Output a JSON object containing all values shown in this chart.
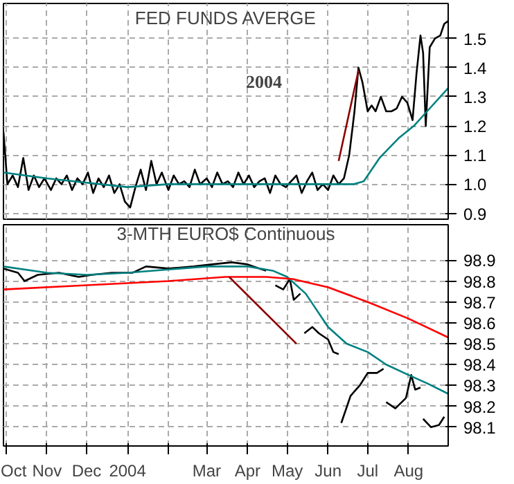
{
  "chart_data": [
    {
      "type": "line",
      "title": "FED FUNDS AVERGE",
      "annotations": [
        "2004"
      ],
      "xlim": [
        "2003-09-29",
        "2004-08-31"
      ],
      "ylim": [
        0.88,
        1.62
      ],
      "yticks": [
        0.9,
        {
          "value": 1,
          "label": "1.0"
        },
        1.1,
        1.2,
        1.3,
        1.4,
        1.5
      ],
      "xticks": [
        {
          "value": "2003-10-01",
          "label": null
        },
        {
          "value": "2003-11-01",
          "label": null
        },
        {
          "value": "2003-12-01",
          "label": null
        },
        {
          "value": "2004-01-01",
          "label": null
        },
        {
          "value": "2004-02-01",
          "label": null
        },
        {
          "value": "2004-03-01",
          "label": null
        },
        {
          "value": "2004-04-01",
          "label": null
        },
        {
          "value": "2004-05-01",
          "label": null
        },
        {
          "value": "2004-06-01",
          "label": null
        },
        {
          "value": "2004-07-01",
          "label": null
        },
        {
          "value": "2004-08-01",
          "label": null
        }
      ],
      "tick_labels": "y",
      "grid": true,
      "series": [
        {
          "color": "#000000",
          "x": [
            "2003-09-29",
            "2003-10-02",
            "2003-10-06",
            "2003-10-10",
            "2003-10-14",
            "2003-10-18",
            "2003-10-22",
            "2003-10-26",
            "2003-10-30",
            "2003-11-04",
            "2003-11-08",
            "2003-11-12",
            "2003-11-16",
            "2003-11-20",
            "2003-11-24",
            "2003-11-28",
            "2003-12-02",
            "2003-12-06",
            "2003-12-10",
            "2003-12-14",
            "2003-12-18",
            "2003-12-22",
            "2003-12-26",
            "2003-12-30",
            "2004-01-03",
            "2004-01-07",
            "2004-01-11",
            "2004-01-15",
            "2004-01-19",
            "2004-01-23",
            "2004-01-27",
            "2004-02-01",
            "2004-02-05",
            "2004-02-09",
            "2004-02-13",
            "2004-02-17",
            "2004-02-21",
            "2004-02-25",
            "2004-03-01",
            "2004-03-05",
            "2004-03-09",
            "2004-03-13",
            "2004-03-17",
            "2004-03-21",
            "2004-03-25",
            "2004-03-29",
            "2004-04-02",
            "2004-04-06",
            "2004-04-10",
            "2004-04-14",
            "2004-04-18",
            "2004-04-22",
            "2004-04-26",
            "2004-04-30",
            "2004-05-04",
            "2004-05-08",
            "2004-05-12",
            "2004-05-16",
            "2004-05-20",
            "2004-05-24",
            "2004-05-28",
            "2004-06-01",
            "2004-06-05",
            "2004-06-09",
            "2004-06-13",
            "2004-06-17",
            "2004-06-21",
            "2004-06-24",
            "2004-06-27",
            "2004-07-01",
            "2004-07-04",
            "2004-07-07",
            "2004-07-11",
            "2004-07-15",
            "2004-07-19",
            "2004-07-23",
            "2004-07-27",
            "2004-07-31",
            "2004-08-04",
            "2004-08-07",
            "2004-08-10",
            "2004-08-12",
            "2004-08-14",
            "2004-08-17",
            "2004-08-21",
            "2004-08-25",
            "2004-08-28",
            "2004-08-31"
          ],
          "values": [
            1.18,
            1.0,
            1.03,
            0.99,
            1.09,
            0.98,
            1.03,
            0.99,
            1.02,
            0.98,
            1.02,
            1.0,
            1.03,
            0.98,
            1.02,
            1.0,
            1.04,
            0.97,
            1.02,
            0.99,
            1.03,
            0.97,
            1.0,
            0.94,
            0.92,
            0.99,
            1.05,
            0.98,
            1.08,
            1.0,
            1.04,
            0.98,
            1.03,
            1.0,
            1.01,
            0.99,
            1.05,
            1.0,
            1.02,
            0.99,
            1.04,
            1.0,
            1.01,
            0.99,
            1.04,
            1.0,
            1.03,
            0.99,
            1.01,
            1.02,
            0.97,
            1.03,
            1.0,
            0.99,
            1.01,
            1.03,
            0.97,
            1.01,
            1.04,
            0.98,
            1.0,
            0.98,
            1.03,
            1.0,
            1.02,
            1.1,
            1.25,
            1.4,
            1.35,
            1.25,
            1.27,
            1.25,
            1.3,
            1.25,
            1.25,
            1.26,
            1.3,
            1.28,
            1.22,
            1.38,
            1.51,
            1.45,
            1.2,
            1.47,
            1.5,
            1.51,
            1.55,
            1.56
          ]
        },
        {
          "color": "#008080",
          "x": [
            "2003-09-29",
            "2003-11-01",
            "2004-01-01",
            "2004-02-01",
            "2004-06-01",
            "2004-06-20",
            "2004-06-28",
            "2004-07-10",
            "2004-07-25",
            "2004-08-05",
            "2004-08-15",
            "2004-08-31"
          ],
          "values": [
            1.04,
            1.02,
            0.99,
            1.0,
            1.0,
            1.0,
            1.01,
            1.09,
            1.16,
            1.2,
            1.25,
            1.33
          ]
        },
        {
          "color": "#8b0000",
          "x": [
            "2004-06-09",
            "2004-06-24"
          ],
          "values": [
            1.08,
            1.39
          ]
        }
      ]
    },
    {
      "type": "line",
      "title": "3-MTH EURO$ Continuous",
      "xlim": [
        "2003-09-29",
        "2004-08-31"
      ],
      "ylim": [
        98.01,
        99.07
      ],
      "yticks": [
        98.1,
        98.2,
        98.3,
        98.4,
        98.5,
        98.6,
        98.7,
        98.8,
        98.9
      ],
      "xticks": [
        {
          "value": "2003-10-01",
          "label": "Oct"
        },
        {
          "value": "2003-11-01",
          "label": "Nov"
        },
        {
          "value": "2003-12-01",
          "label": "Dec"
        },
        {
          "value": "2004-01-01",
          "label": "2004"
        },
        {
          "value": "2004-02-01",
          "label": null
        },
        {
          "value": "2004-03-01",
          "label": "Mar"
        },
        {
          "value": "2004-04-01",
          "label": "Apr"
        },
        {
          "value": "2004-05-01",
          "label": "May"
        },
        {
          "value": "2004-06-01",
          "label": "Jun"
        },
        {
          "value": "2004-07-01",
          "label": "Jul"
        },
        {
          "value": "2004-08-01",
          "label": "Aug"
        }
      ],
      "grid": true,
      "series": [
        {
          "color": "#000000",
          "x": [
            "2003-09-29",
            "2003-10-10",
            "2003-10-15",
            "2003-10-25",
            "2003-11-10",
            "2003-11-25",
            "2003-12-05",
            "2003-12-20",
            "2004-01-05",
            "2004-01-15",
            "2004-02-01",
            "2004-02-20",
            "2004-03-05",
            "2004-03-20",
            "2004-04-01",
            "2004-04-10",
            "2004-04-15",
            "2004-04-17",
            "2004-04-22",
            "2004-04-28",
            "2004-05-03",
            "2004-05-06",
            "2004-05-11",
            "2004-05-12",
            "2004-05-14",
            "2004-05-20",
            "2004-05-25",
            "2004-06-01",
            "2004-06-05",
            "2004-06-09",
            "2004-06-10",
            "2004-06-11",
            "2004-06-18",
            "2004-06-25",
            "2004-07-01",
            "2004-07-08",
            "2004-07-13",
            "2004-07-14",
            "2004-07-15",
            "2004-07-22",
            "2004-07-30",
            "2004-08-03",
            "2004-08-06",
            "2004-08-10",
            "2004-08-11",
            "2004-08-12",
            "2004-08-18",
            "2004-08-24",
            "2004-08-28"
          ],
          "values": [
            98.86,
            98.84,
            98.8,
            98.83,
            98.84,
            98.82,
            98.83,
            98.84,
            98.84,
            98.87,
            98.86,
            98.87,
            98.88,
            98.89,
            98.88,
            98.86,
            98.85,
            null,
            98.78,
            98.76,
            98.81,
            98.71,
            98.74,
            null,
            98.55,
            98.58,
            98.55,
            98.52,
            98.46,
            98.45,
            null,
            98.12,
            98.25,
            98.3,
            98.36,
            98.36,
            98.38,
            null,
            98.22,
            98.19,
            98.24,
            98.35,
            98.28,
            98.29,
            null,
            98.14,
            98.1,
            98.11,
            98.15
          ]
        },
        {
          "color": "#008080",
          "x": [
            "2003-09-29",
            "2003-11-01",
            "2003-12-01",
            "2004-01-01",
            "2004-03-01",
            "2004-04-01",
            "2004-04-20",
            "2004-05-01",
            "2004-05-15",
            "2004-06-01",
            "2004-06-15",
            "2004-07-01",
            "2004-07-15",
            "2004-08-01",
            "2004-08-15",
            "2004-08-31"
          ],
          "values": [
            98.87,
            98.84,
            98.83,
            98.84,
            98.87,
            98.87,
            98.85,
            98.82,
            98.74,
            98.58,
            98.5,
            98.46,
            98.4,
            98.35,
            98.31,
            98.26
          ]
        },
        {
          "color": "#ff0000",
          "x": [
            "2003-09-29",
            "2003-12-01",
            "2004-02-01",
            "2004-03-15",
            "2004-04-15",
            "2004-05-05",
            "2004-06-01",
            "2004-07-01",
            "2004-08-01",
            "2004-08-31"
          ],
          "values": [
            98.76,
            98.78,
            98.8,
            98.82,
            98.82,
            98.81,
            98.77,
            98.7,
            98.62,
            98.53
          ]
        },
        {
          "color": "#8b0000",
          "x": [
            "2004-03-18",
            "2004-05-08"
          ],
          "values": [
            98.82,
            98.5
          ]
        }
      ]
    }
  ]
}
